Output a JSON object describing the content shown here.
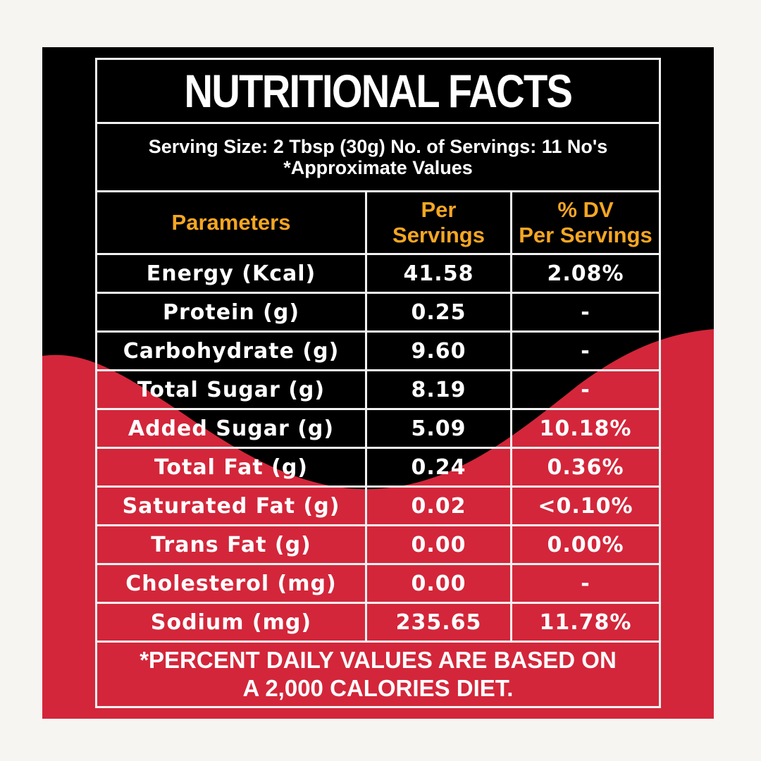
{
  "title": "NUTRITIONAL FACTS",
  "serving_line": "Serving Size: 2 Tbsp (30g) No. of Servings: 11 No's",
  "approx_note": "*Approximate Values",
  "headers": {
    "parameters": "Parameters",
    "per_servings": [
      "Per",
      "Servings"
    ],
    "dv": [
      "% DV",
      "Per Servings"
    ]
  },
  "rows": [
    {
      "param": "Energy (Kcal)",
      "value": "41.58",
      "dv": "2.08%"
    },
    {
      "param": "Protein (g)",
      "value": "0.25",
      "dv": "-"
    },
    {
      "param": "Carbohydrate (g)",
      "value": "9.60",
      "dv": "-"
    },
    {
      "param": "Total Sugar (g)",
      "value": "8.19",
      "dv": "-"
    },
    {
      "param": "Added Sugar (g)",
      "value": "5.09",
      "dv": "10.18%"
    },
    {
      "param": "Total Fat (g)",
      "value": "0.24",
      "dv": "0.36%"
    },
    {
      "param": "Saturated Fat (g)",
      "value": "0.02",
      "dv": "<0.10%"
    },
    {
      "param": "Trans Fat (g)",
      "value": "0.00",
      "dv": "0.00%"
    },
    {
      "param": "Cholesterol (mg)",
      "value": "0.00",
      "dv": "-"
    },
    {
      "param": "Sodium (mg)",
      "value": "235.65",
      "dv": "11.78%"
    }
  ],
  "footer": [
    "*PERCENT DAILY VALUES ARE BASED ON",
    "A 2,000 CALORIES DIET."
  ],
  "colors": {
    "black": "#000000",
    "red": "#d3263a",
    "header_orange": "#f5a623",
    "background": "#f7f5f1"
  }
}
